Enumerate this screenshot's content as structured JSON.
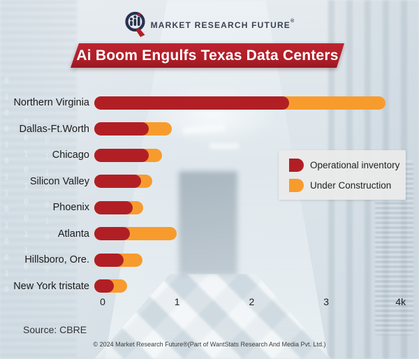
{
  "logo": {
    "brand": "MARKET RESEARCH FUTURE",
    "registered": "®"
  },
  "title": "Ai Boom Engulfs Texas Data Centers",
  "chart_data": {
    "type": "bar",
    "orientation": "horizontal",
    "stacked": true,
    "title": "Ai Boom Engulfs Texas Data Centers",
    "categories": [
      "Northern Virginia",
      "Dallas-Ft.Worth",
      "Chicago",
      "Silicon Valley",
      "Phoenix",
      "Atlanta",
      "Hillsboro, Ore.",
      "New York tristate"
    ],
    "series": [
      {
        "name": "Operational inventory",
        "color": "#b11f25",
        "values": [
          2.5,
          0.62,
          0.62,
          0.52,
          0.4,
          0.37,
          0.28,
          0.15
        ]
      },
      {
        "name": "Under Construction",
        "color": "#f89b2d",
        "values": [
          1.3,
          0.31,
          0.18,
          0.15,
          0.14,
          0.62,
          0.25,
          0.18
        ]
      }
    ],
    "x_ticks": [
      "0",
      "1",
      "2",
      "3",
      "4k"
    ],
    "x_tick_values": [
      0,
      1,
      2,
      3,
      4
    ],
    "xlim": [
      0,
      4.2
    ],
    "unit": "k (thousands)",
    "grid": false,
    "legend_position": "middle-right"
  },
  "legend": {
    "items": [
      {
        "label": "Operational inventory",
        "color": "#b11f25"
      },
      {
        "label": "Under Construction",
        "color": "#f89b2d"
      }
    ]
  },
  "source": "Source: CBRE",
  "footer": "© 2024 Market Research Future®(Part of WantStats Research And Media Pvt. Ltd.)",
  "background": {
    "binary_col1": "0\n1\n0\n0\n1\n0\n1\n1\n0\n1\n0\n0\n1\n0",
    "binary_col2": "1\n0\n0\n1\n0\n1\n0\n0\n1\n1\n0\n1",
    "binary_col3": "0\n1\n1\n0\n0\n1\n0\n1\n0\n0"
  }
}
